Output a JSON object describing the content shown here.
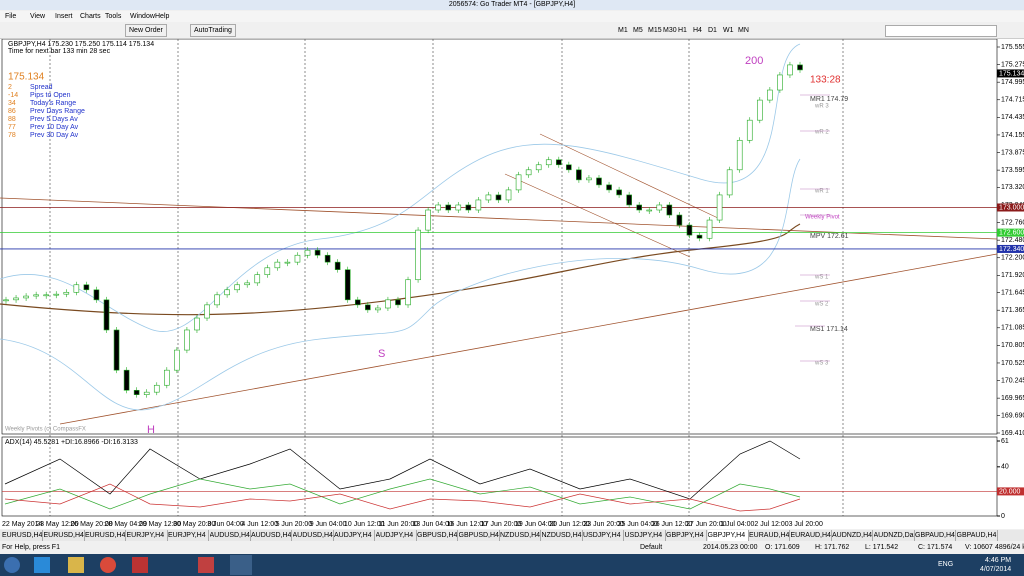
{
  "window": {
    "title": "2056574: Go Trader MT4 - [GBPJPY,H4]"
  },
  "menu": [
    "File",
    "View",
    "Insert",
    "Charts",
    "Tools",
    "Window",
    "Help"
  ],
  "toolbar": {
    "new_order": "New Order",
    "autotrading": "AutoTrading",
    "timeframes": [
      "M1",
      "M5",
      "M15",
      "M30",
      "H1",
      "H4",
      "D1",
      "W1",
      "MN"
    ]
  },
  "chart": {
    "symbol_line": "GBPJPY,H4  175.230 175.250 175.114 175.134",
    "timer_line": "Time for next bar 133 min 28 sec",
    "bid": "175.134",
    "info": [
      [
        "2",
        "Spread"
      ],
      [
        "-14",
        "Pips to Open"
      ],
      [
        "34",
        "Today's Range"
      ],
      [
        "86",
        "Prev Days Range"
      ],
      [
        "88",
        "Prev 5 Days Av"
      ],
      [
        "77",
        "Prev 10 Day Av"
      ],
      [
        "78",
        "Prev 30 Day Av"
      ]
    ],
    "ylim": [
      169.41,
      175.555
    ],
    "yticks": [
      175.555,
      175.275,
      174.995,
      174.715,
      174.435,
      174.155,
      173.875,
      173.595,
      {
        "value": 173.32,
        "label": "173.320"
      },
      {
        "value": 173.04,
        "label": "173.040"
      },
      {
        "value": 172.76,
        "label": "172.760"
      },
      {
        "value": 172.48,
        "label": "172.480"
      },
      {
        "value": 172.2,
        "label": "172.200"
      },
      {
        "value": 171.92,
        "label": "171.920"
      },
      171.645,
      171.365,
      171.085,
      170.805,
      170.525,
      170.245,
      169.965,
      {
        "value": 169.69,
        "label": "169.690"
      },
      {
        "value": 169.41,
        "label": "169.410"
      }
    ],
    "levels": [
      {
        "value": 173,
        "label": "173.000",
        "color": "#8b1a1a"
      },
      {
        "value": 172.6,
        "label": "172.600",
        "color": "#33cc33"
      },
      {
        "value": 172.34,
        "label": "172.340",
        "color": "#2233aa"
      },
      {
        "value": 175.134,
        "label": "175.134",
        "color": "#000000"
      }
    ],
    "closes": [
      171.53,
      171.56,
      171.59,
      171.61,
      171.61,
      171.62,
      171.65,
      171.77,
      171.69,
      171.53,
      171.05,
      170.41,
      170.09,
      170.02,
      170.06,
      170.17,
      170.41,
      170.73,
      171.05,
      171.24,
      171.45,
      171.61,
      171.69,
      171.77,
      171.8,
      171.93,
      172.04,
      172.13,
      172.13,
      172.24,
      172.32,
      172.24,
      172.13,
      172.01,
      171.53,
      171.45,
      171.37,
      171.4,
      171.53,
      171.45,
      171.85,
      172.64,
      172.96,
      173.04,
      172.96,
      173.04,
      172.96,
      173.12,
      173.2,
      173.12,
      173.28,
      173.52,
      173.6,
      173.68,
      173.76,
      173.68,
      173.6,
      173.44,
      173.47,
      173.36,
      173.28,
      173.2,
      173.04,
      172.96,
      172.96,
      173.04,
      172.88,
      172.72,
      172.56,
      172.51,
      172.8,
      173.2,
      173.6,
      174.07,
      174.39,
      174.71,
      174.87,
      175.11,
      175.27,
      175.19
    ],
    "candle_color": "#22aa22",
    "annotations": [
      "200",
      "133:28",
      "S",
      "H",
      "MR1  174.79",
      "wR 3",
      "wR 2",
      "wR 1",
      "Weekly Pivot",
      "MPV  172.61",
      "wS 1",
      "wS 2",
      "MS1  171.14",
      "wS 3",
      "Weekly Pivots (c) CompassFX"
    ],
    "adx": {
      "label": "ADX(14) 45.5281 +DI:16.8966 -DI:16.3133",
      "ylim": [
        0,
        61
      ],
      "yticks": [
        61,
        40,
        20,
        {
          "value": 20,
          "label": "20.000"
        },
        0
      ]
    },
    "dates": [
      "22 May 2014",
      "23 May 12:00",
      "26 May 20:00",
      "28 May 04:00",
      "29 May 12:00",
      "30 May 20:00",
      "3 Jun 04:00",
      "4 Jun 12:00",
      "5 Jun 20:00",
      "9 Jun 04:00",
      "10 Jun 12:00",
      "11 Jun 20:00",
      "13 Jun 04:00",
      "16 Jun 12:00",
      "17 Jun 20:00",
      "19 Jun 04:00",
      "20 Jun 12:00",
      "23 Jun 20:00",
      "25 Jun 04:00",
      "26 Jun 12:00",
      "27 Jun 20:00",
      "1 Jul 04:00",
      "2 Jul 12:00",
      "3 Jul 20:00"
    ]
  },
  "tabs": [
    "EURUSD,H4",
    "EURUSD,H4",
    "EURUSD,H4",
    "EURJPY,H4",
    "EURJPY,H4",
    "AUDUSD,H4",
    "AUDUSD,H4",
    "AUDUSD,H4",
    "AUDJPY,H4",
    "AUDJPY,H4",
    "GBPUSD,H4",
    "GBPUSD,H4",
    "NZDUSD,H4",
    "NZDUSD,H4",
    "USDJPY,H4",
    "USDJPY,H4",
    "GBPJPY,H4",
    "GBPJPY,H4",
    "EURAUD,H4",
    "EURAUD,H4",
    "AUDNZD,H4",
    "AUDNZD,Daily",
    "GBPAUD,H4",
    "GBPAUD,H4"
  ],
  "status": [
    "For Help, press F1",
    "Default",
    "2014.05.23 00:00",
    "O: 171.609",
    "H: 171.762",
    "L: 171.542",
    "C: 171.574",
    "V: 10607",
    "4896/24 kb"
  ],
  "taskbar": {
    "lang": "ENG",
    "time": "4:46 PM",
    "date": "4/07/2014"
  }
}
